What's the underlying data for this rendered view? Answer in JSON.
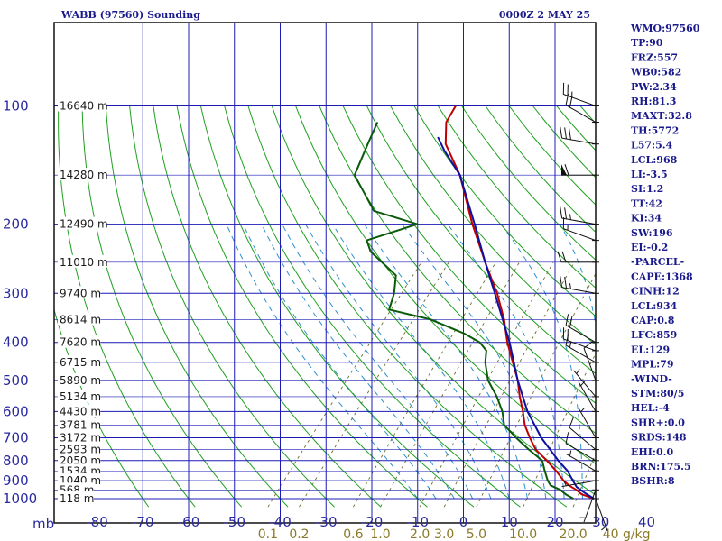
{
  "title_left": "WABB (97560) Sounding",
  "title_right": "0000Z  2 MAY 25",
  "chart_data": {
    "type": "skew-t",
    "x_axis_label": "mb",
    "y_axis_label": "",
    "pressure_ticks": [
      100,
      200,
      300,
      400,
      500,
      600,
      700,
      800,
      900,
      1000
    ],
    "temperature_ticks": [
      -80,
      -70,
      -60,
      -50,
      -40,
      -30,
      -20,
      -10,
      0,
      10,
      20,
      30,
      40
    ],
    "plim": [
      100,
      1050
    ],
    "mixing_ratio_labels": [
      "0.1",
      "0.2",
      "0.6",
      "1.0",
      "2.0",
      "3.0",
      "5.0",
      "10.0",
      "20.0",
      "40 g/kg"
    ],
    "height_labels": [
      {
        "p": 100,
        "label": "16640 m"
      },
      {
        "p": 150,
        "label": "14280 m"
      },
      {
        "p": 200,
        "label": "12490 m"
      },
      {
        "p": 250,
        "label": "11010 m"
      },
      {
        "p": 300,
        "label": "9740 m"
      },
      {
        "p": 350,
        "label": "8614 m"
      },
      {
        "p": 400,
        "label": "7620 m"
      },
      {
        "p": 450,
        "label": "6715 m"
      },
      {
        "p": 500,
        "label": "5890 m"
      },
      {
        "p": 550,
        "label": "5134 m"
      },
      {
        "p": 600,
        "label": "4430 m"
      },
      {
        "p": 650,
        "label": "3781 m"
      },
      {
        "p": 700,
        "label": "3172 m"
      },
      {
        "p": 750,
        "label": "2593 m"
      },
      {
        "p": 800,
        "label": "2050 m"
      },
      {
        "p": 850,
        "label": "1534 m"
      },
      {
        "p": 900,
        "label": "1040 m"
      },
      {
        "p": 950,
        "label": "568 m"
      },
      {
        "p": 1000,
        "label": "118 m"
      }
    ],
    "series": [
      {
        "name": "temperature",
        "color": "#c00000",
        "points": [
          [
            1000,
            28.5
          ],
          [
            975,
            25
          ],
          [
            950,
            23
          ],
          [
            925,
            20.5
          ],
          [
            900,
            18.5
          ],
          [
            850,
            15
          ],
          [
            800,
            11
          ],
          [
            750,
            6.5
          ],
          [
            700,
            3
          ],
          [
            650,
            -0.5
          ],
          [
            600,
            -3.5
          ],
          [
            550,
            -7
          ],
          [
            500,
            -10.5
          ],
          [
            450,
            -15
          ],
          [
            400,
            -20
          ],
          [
            350,
            -25
          ],
          [
            300,
            -31.5
          ],
          [
            250,
            -40
          ],
          [
            200,
            -50
          ],
          [
            150,
            -62
          ],
          [
            125,
            -71
          ],
          [
            110,
            -75
          ],
          [
            100,
            -76
          ]
        ]
      },
      {
        "name": "dewpoint",
        "color": "#0a5a0a",
        "points": [
          [
            1000,
            24
          ],
          [
            975,
            21.5
          ],
          [
            950,
            19.5
          ],
          [
            925,
            16.5
          ],
          [
            900,
            15
          ],
          [
            850,
            12.5
          ],
          [
            800,
            10
          ],
          [
            750,
            5
          ],
          [
            700,
            0
          ],
          [
            650,
            -5
          ],
          [
            600,
            -8
          ],
          [
            550,
            -12
          ],
          [
            500,
            -17
          ],
          [
            450,
            -21
          ],
          [
            420,
            -23
          ],
          [
            400,
            -26
          ],
          [
            380,
            -31
          ],
          [
            350,
            -41
          ],
          [
            330,
            -52
          ],
          [
            300,
            -54
          ],
          [
            270,
            -57
          ],
          [
            235,
            -67
          ],
          [
            220,
            -70
          ],
          [
            200,
            -62
          ],
          [
            185,
            -74
          ],
          [
            165,
            -80
          ],
          [
            150,
            -85
          ],
          [
            125,
            -88
          ],
          [
            110,
            -90
          ]
        ]
      },
      {
        "name": "parcel",
        "color": "#1010a0",
        "points": [
          [
            1000,
            28.5
          ],
          [
            968,
            25.5
          ],
          [
            934,
            22.5
          ],
          [
            900,
            20.5
          ],
          [
            850,
            17.5
          ],
          [
            800,
            13.5
          ],
          [
            700,
            5.5
          ],
          [
            600,
            -2.5
          ],
          [
            500,
            -10.5
          ],
          [
            400,
            -19.5
          ],
          [
            300,
            -32
          ],
          [
            250,
            -40
          ],
          [
            200,
            -49.5
          ],
          [
            150,
            -62
          ],
          [
            130,
            -70
          ],
          [
            120,
            -74
          ]
        ]
      }
    ],
    "winds": [
      {
        "p": 100,
        "dir": 290,
        "spd": 25
      },
      {
        "p": 110,
        "dir": 300,
        "spd": 20
      },
      {
        "p": 125,
        "dir": 280,
        "spd": 30
      },
      {
        "p": 150,
        "dir": 270,
        "spd": 60
      },
      {
        "p": 200,
        "dir": 280,
        "spd": 25
      },
      {
        "p": 220,
        "dir": 290,
        "spd": 15
      },
      {
        "p": 250,
        "dir": 270,
        "spd": 20
      },
      {
        "p": 300,
        "dir": 280,
        "spd": 25
      },
      {
        "p": 400,
        "dir": 300,
        "spd": 20
      },
      {
        "p": 420,
        "dir": 290,
        "spd": 20
      },
      {
        "p": 450,
        "dir": 300,
        "spd": 15
      },
      {
        "p": 500,
        "dir": 340,
        "spd": 10
      },
      {
        "p": 550,
        "dir": 320,
        "spd": 5
      },
      {
        "p": 600,
        "dir": 330,
        "spd": 5
      },
      {
        "p": 700,
        "dir": 330,
        "spd": 5
      },
      {
        "p": 750,
        "dir": 310,
        "spd": 10
      },
      {
        "p": 800,
        "dir": 300,
        "spd": 10
      },
      {
        "p": 850,
        "dir": 300,
        "spd": 5
      },
      {
        "p": 900,
        "dir": 260,
        "spd": 5
      },
      {
        "p": 950,
        "dir": 200,
        "spd": 5
      },
      {
        "p": 1000,
        "dir": 160,
        "spd": 5
      }
    ]
  },
  "indices": [
    "WMO:97560",
    "TP:90",
    "FRZ:557",
    "WB0:582",
    "PW:2.34",
    "RH:81.3",
    "MAXT:32.8",
    "TH:5772",
    "L57:5.4",
    "LCL:968",
    "LI:-3.5",
    "SI:1.2",
    "TT:42",
    "KI:34",
    "SW:196",
    "EI:-0.2",
    "-PARCEL-",
    "CAPE:1368",
    "CINH:12",
    "LCL:934",
    "CAP:0.8",
    "LFC:859",
    "EL:129",
    "MPL:79",
    "-WIND-",
    "STM:80/5",
    "HEL:-4",
    "SHR+:0.0",
    "SRDS:148",
    "EHI:0.0",
    "BRN:175.5",
    "BSHR:8"
  ],
  "colors": {
    "grid": "#1c1cb4",
    "dry_adiabat": "#1fa01f",
    "moist_adiabat": "#2f8fd0",
    "mixing_ratio": "#6a6a2a",
    "frame": "#101010"
  }
}
